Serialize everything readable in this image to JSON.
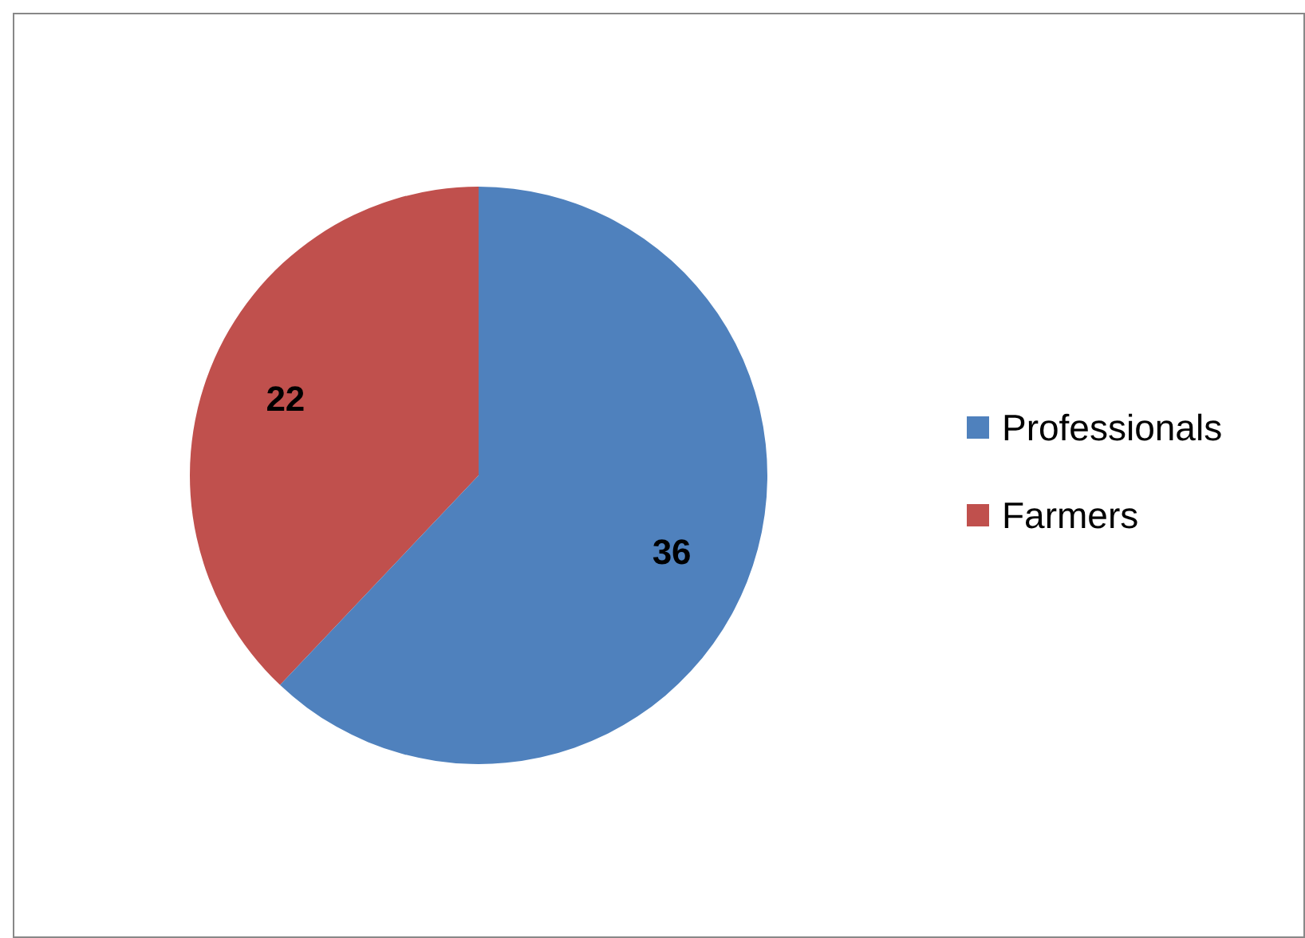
{
  "chart_data": {
    "type": "pie",
    "categories": [
      "Professionals",
      "Farmers"
    ],
    "values": [
      36,
      22
    ],
    "colors": [
      "#4f81bd",
      "#c0504d"
    ],
    "data_labels": true,
    "legend": "right"
  }
}
